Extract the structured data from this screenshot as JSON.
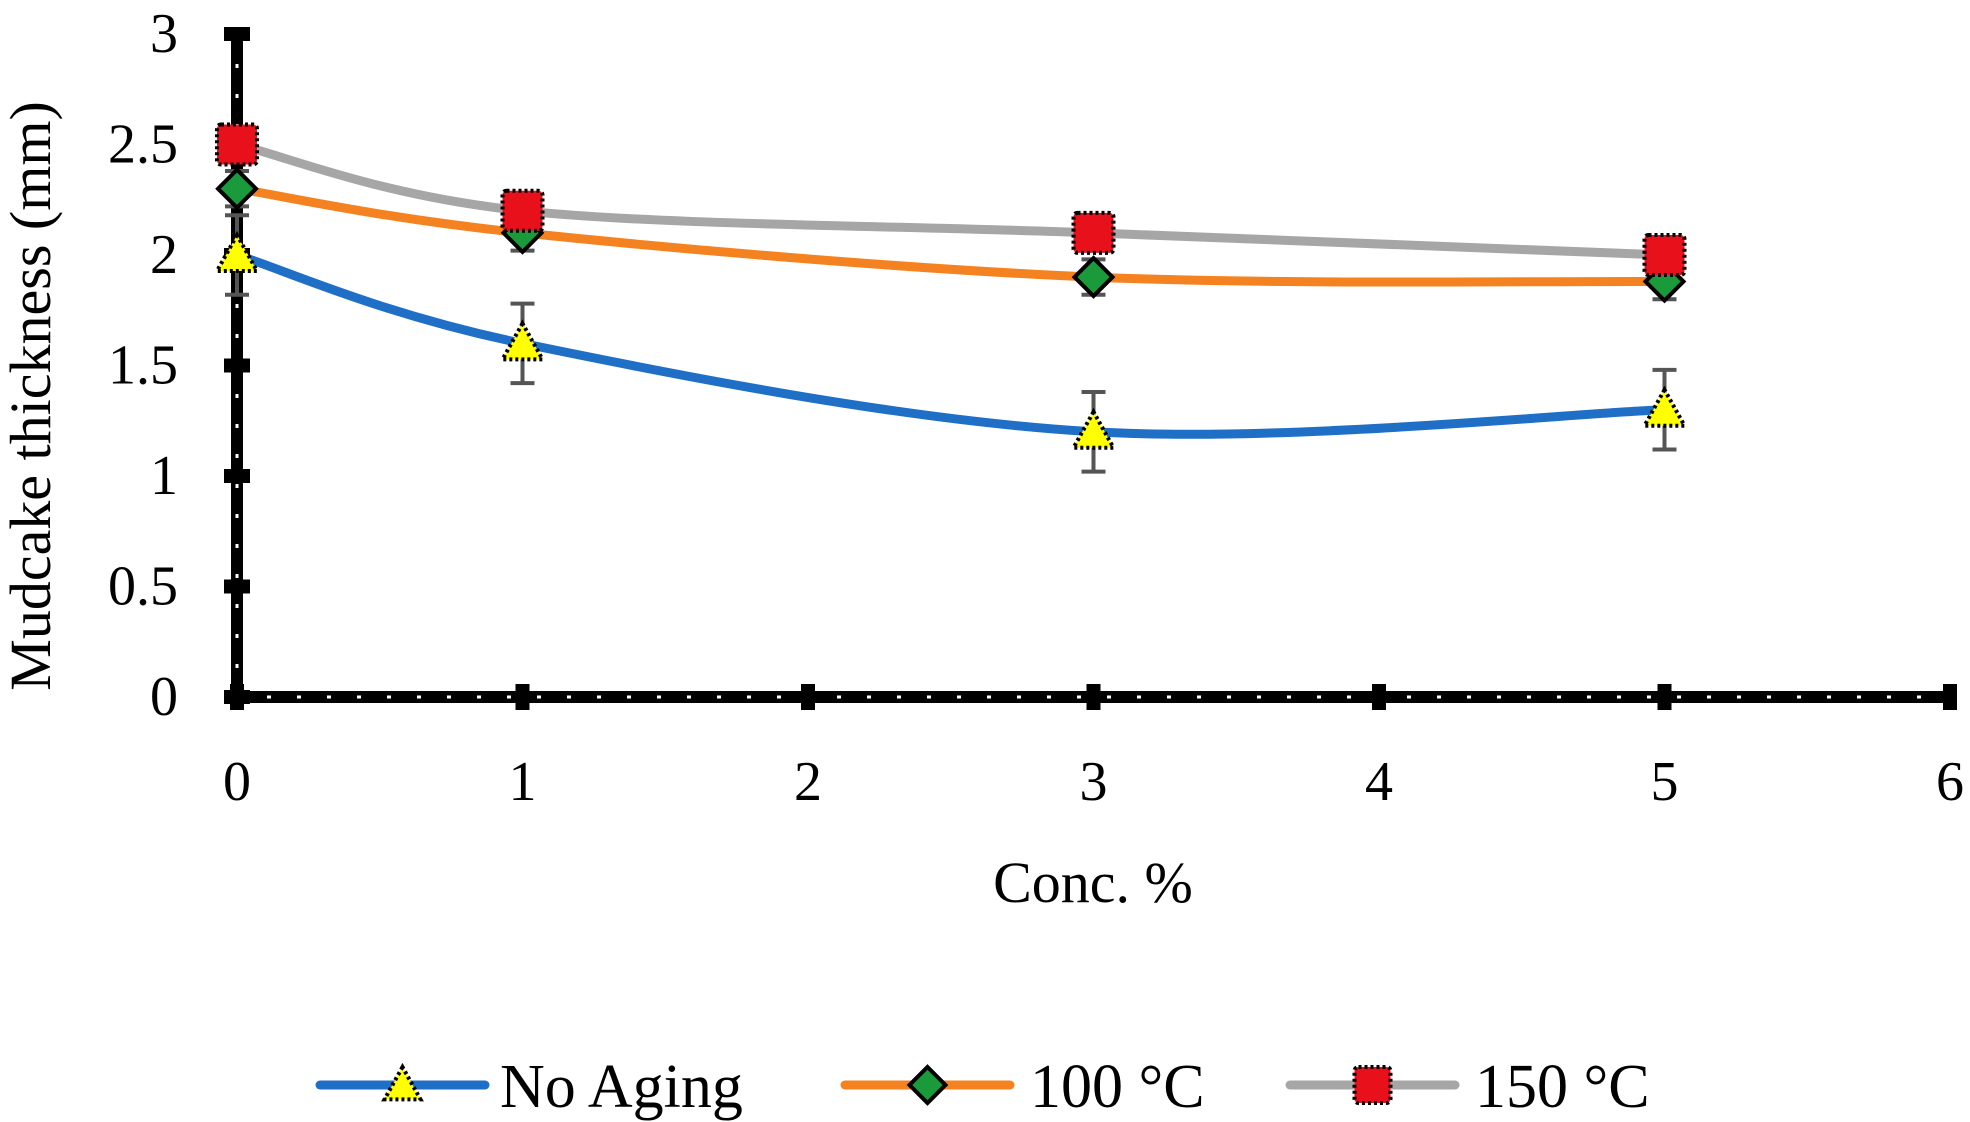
{
  "chart_data": {
    "type": "line",
    "title": "",
    "xlabel": "Conc. %",
    "ylabel": "Mudcake thickness (mm)",
    "xlim": [
      0,
      6
    ],
    "ylim": [
      0,
      3
    ],
    "x_ticks": [
      "0",
      "1",
      "2",
      "3",
      "4",
      "5",
      "6"
    ],
    "y_ticks": [
      "0",
      "0.5",
      "1",
      "1.5",
      "2",
      "2.5",
      "3"
    ],
    "grid": false,
    "legend_position": "bottom",
    "series": [
      {
        "name": "No Aging",
        "color": "#1f6fc6",
        "marker": "triangle",
        "marker_color": "#ffff00",
        "x": [
          0,
          1,
          3,
          5
        ],
        "values": [
          2.0,
          1.6,
          1.2,
          1.3
        ],
        "error": [
          0.18,
          0.18,
          0.18,
          0.18
        ]
      },
      {
        "name": "100 °C",
        "color": "#f58220",
        "marker": "diamond",
        "marker_color": "#1a9a3a",
        "x": [
          0,
          1,
          3,
          5
        ],
        "values": [
          2.3,
          2.1,
          1.9,
          1.88
        ],
        "error": [
          0.08,
          0.08,
          0.08,
          0.08
        ]
      },
      {
        "name": "150 °C",
        "color": "#a6a6a6",
        "marker": "square",
        "marker_color": "#e8101a",
        "x": [
          0,
          1,
          3,
          5
        ],
        "values": [
          2.5,
          2.2,
          2.1,
          2.0
        ],
        "error": [
          0.08,
          0.06,
          0.08,
          0.06
        ]
      }
    ]
  }
}
